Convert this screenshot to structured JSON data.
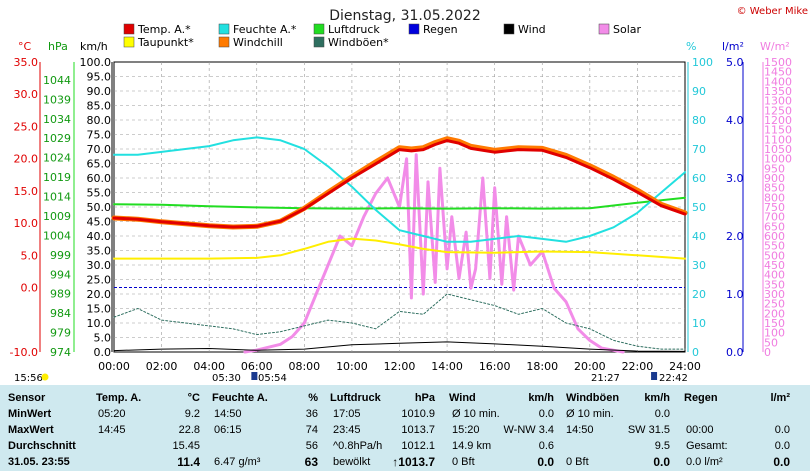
{
  "header": {
    "title": "Dienstag, 31.05.2022",
    "copyright": "© Weber Mike"
  },
  "legend": [
    {
      "label": "Temp. A.*",
      "color": "#e00000"
    },
    {
      "label": "Feuchte A.*",
      "color": "#22e0e0"
    },
    {
      "label": "Luftdruck",
      "color": "#22dd22"
    },
    {
      "label": "Regen",
      "color": "#0000dd"
    },
    {
      "label": "Wind",
      "color": "#000000"
    },
    {
      "label": "Solar",
      "color": "#f28ce8"
    },
    {
      "label": "Taupunkt*",
      "color": "#ffff00"
    },
    {
      "label": "Windchill",
      "color": "#ff7a00"
    },
    {
      "label": "Windböen*",
      "color": "#2f6f60"
    }
  ],
  "chart_data": {
    "type": "line",
    "x_ticks": [
      "00:00",
      "02:00",
      "04:00",
      "06:00",
      "08:00",
      "10:00",
      "12:00",
      "14:00",
      "16:00",
      "18:00",
      "20:00",
      "22:00",
      "24:00"
    ],
    "axes": {
      "temp": {
        "unit": "°C",
        "range": [
          -10,
          35
        ],
        "ticks": [
          "35.0",
          "30.0",
          "25.0",
          "20.0",
          "15.0",
          "10.0",
          "5.0",
          "0.0",
          "-10.0"
        ],
        "tick_values": [
          35,
          30,
          25,
          20,
          15,
          10,
          5,
          0,
          -10
        ]
      },
      "pressure": {
        "unit": "hPa",
        "range": [
          974,
          1048.6
        ],
        "ticks": [
          "1044",
          "1039",
          "1034",
          "1029",
          "1024",
          "1019",
          "1014",
          "1009",
          "1004",
          "999",
          "994",
          "989",
          "984",
          "979",
          "974"
        ]
      },
      "wind": {
        "unit": "km/h",
        "range": [
          0,
          100
        ],
        "ticks": [
          "100.0",
          "95.0",
          "90.0",
          "85.0",
          "80.0",
          "75.0",
          "70.0",
          "65.0",
          "60.0",
          "55.0",
          "50.0",
          "45.0",
          "40.0",
          "35.0",
          "30.0",
          "25.0",
          "20.0",
          "15.0",
          "10.0",
          "5.0",
          "0.0"
        ]
      },
      "humidity": {
        "unit": "%",
        "range": [
          0,
          100
        ],
        "ticks": [
          "100",
          "90",
          "80",
          "70",
          "60",
          "50",
          "40",
          "30",
          "20",
          "10",
          "0"
        ]
      },
      "rain": {
        "unit": "l/m²",
        "range": [
          0,
          5
        ],
        "ticks": [
          "5.0",
          "4.0",
          "3.0",
          "2.0",
          "1.0",
          "0.0"
        ]
      },
      "solar": {
        "unit": "W/m²",
        "range": [
          0,
          1500
        ],
        "ticks": [
          "1500",
          "1450",
          "1400",
          "1350",
          "1300",
          "1250",
          "1200",
          "1150",
          "1100",
          "1050",
          "1000",
          "950",
          "900",
          "850",
          "800",
          "750",
          "700",
          "650",
          "600",
          "550",
          "500",
          "450",
          "400",
          "350",
          "300",
          "250",
          "200",
          "150",
          "100",
          "50",
          "0"
        ]
      }
    },
    "series": [
      {
        "name": "Temp. A.*",
        "axis": "temp",
        "x": [
          0,
          1,
          2,
          3,
          4,
          5,
          6,
          7,
          8,
          9,
          10,
          11,
          12,
          12.5,
          13,
          13.5,
          14,
          14.5,
          15,
          16,
          17,
          18,
          19,
          20,
          21,
          22,
          23,
          24
        ],
        "y": [
          10.8,
          10.6,
          10.2,
          9.9,
          9.6,
          9.4,
          9.5,
          10.3,
          12.2,
          14.6,
          17.0,
          19.2,
          21.4,
          21.2,
          21.4,
          22.2,
          22.8,
          22.4,
          21.6,
          21.0,
          21.4,
          21.3,
          20.2,
          18.6,
          16.8,
          14.8,
          12.7,
          11.4
        ]
      },
      {
        "name": "Feuchte A.*",
        "axis": "humidity",
        "x": [
          0,
          1,
          2,
          3,
          4,
          5,
          6,
          7,
          8,
          9,
          10,
          11,
          12,
          13,
          14,
          15,
          16,
          17,
          18,
          19,
          20,
          21,
          22,
          23,
          24
        ],
        "y": [
          68,
          68,
          69,
          70,
          71,
          73,
          74,
          73,
          70,
          64,
          57,
          49,
          42,
          40,
          38,
          38,
          39,
          40,
          39,
          38,
          40,
          43,
          48,
          55,
          62
        ]
      },
      {
        "name": "Luftdruck",
        "axis": "pressure",
        "x": [
          0,
          2,
          4,
          6,
          8,
          10,
          12,
          14,
          16,
          18,
          20,
          22,
          24
        ],
        "y": [
          1012.0,
          1011.9,
          1011.5,
          1011.2,
          1011.0,
          1010.9,
          1011.0,
          1010.9,
          1011.0,
          1010.9,
          1011.0,
          1012.4,
          1013.7
        ]
      },
      {
        "name": "Taupunkt*",
        "axis": "temp",
        "x": [
          0,
          2,
          4,
          6,
          7,
          8,
          9,
          10,
          11,
          12,
          13,
          14,
          16,
          18,
          20,
          22,
          24
        ],
        "y": [
          4.5,
          4.5,
          4.5,
          4.6,
          5.0,
          6.0,
          7.1,
          7.6,
          7.3,
          6.7,
          6.0,
          5.5,
          5.4,
          5.6,
          5.5,
          5.0,
          4.5
        ]
      },
      {
        "name": "Solar",
        "axis": "solar",
        "x": [
          5.5,
          6,
          7,
          7.5,
          8,
          8.5,
          9,
          9.5,
          10,
          10.5,
          11,
          11.5,
          12,
          12.3,
          12.5,
          12.7,
          13,
          13.2,
          13.5,
          13.7,
          14,
          14.2,
          14.5,
          14.8,
          15,
          15.2,
          15.5,
          15.8,
          16,
          16.3,
          16.5,
          16.8,
          17,
          17.5,
          18,
          18.5,
          19,
          19.5,
          20,
          20.5,
          21.4
        ],
        "y": [
          0,
          10,
          40,
          80,
          150,
          300,
          450,
          600,
          550,
          700,
          820,
          900,
          750,
          1000,
          280,
          1020,
          300,
          880,
          360,
          950,
          430,
          700,
          380,
          620,
          330,
          430,
          900,
          380,
          850,
          350,
          700,
          320,
          600,
          450,
          520,
          330,
          260,
          120,
          60,
          20,
          0
        ]
      },
      {
        "name": "Wind",
        "axis": "wind",
        "x": [
          0,
          2,
          4,
          6,
          8,
          10,
          12,
          14,
          16,
          18,
          20,
          22,
          24
        ],
        "y": [
          0.5,
          1.0,
          1.2,
          0.6,
          1.0,
          2.5,
          3.0,
          3.5,
          2.8,
          2.0,
          1.0,
          0.3,
          0.2
        ]
      },
      {
        "name": "Windböen*",
        "axis": "wind",
        "x": [
          0,
          1,
          2,
          3,
          4,
          5,
          6,
          7,
          8,
          9,
          10,
          11,
          12,
          13,
          14,
          15,
          16,
          17,
          18,
          19,
          20,
          21,
          22,
          23,
          24
        ],
        "y": [
          12,
          15,
          11,
          10,
          9,
          8,
          6,
          7,
          9,
          11,
          10,
          8,
          14,
          13,
          20,
          18,
          16,
          13,
          15,
          10,
          8,
          4,
          2,
          1,
          1
        ]
      },
      {
        "name": "Windchill",
        "axis": "temp",
        "x": [
          0,
          1,
          2,
          3,
          4,
          5,
          6,
          7,
          8,
          9,
          10,
          11,
          12,
          12.5,
          13,
          13.5,
          14,
          14.5,
          15,
          16,
          17,
          18,
          19,
          20,
          21,
          22,
          23,
          24
        ],
        "y": [
          10.8,
          10.6,
          10.2,
          9.9,
          9.6,
          9.4,
          9.5,
          10.3,
          12.3,
          14.8,
          17.2,
          19.5,
          21.7,
          21.5,
          21.7,
          22.5,
          23.1,
          22.7,
          21.9,
          21.3,
          21.7,
          21.6,
          20.5,
          18.9,
          17.1,
          15.1,
          12.9,
          11.6
        ]
      }
    ],
    "annotations": {
      "left_time": "15:56",
      "sunrise": "05:30",
      "sunrise_civil": "05:54",
      "sunset": "21:27",
      "sunset_civil": "22:42"
    }
  },
  "table": {
    "headers": {
      "sensor": "Sensor",
      "temp": "Temp. A.",
      "temp_unit": "°C",
      "hum": "Feuchte A.",
      "hum_unit": "%",
      "press": "Luftdruck",
      "press_unit": "hPa",
      "wind": "Wind",
      "wind_unit": "km/h",
      "gust": "Windböen",
      "gust_unit": "km/h",
      "rain": "Regen",
      "rain_unit": "l/m²"
    },
    "rows": [
      {
        "label": "MinWert",
        "temp_time": "05:20",
        "temp": "9.2",
        "hum_time": "14:50",
        "hum": "36",
        "press_time": "17:05",
        "press": "1010.9",
        "wind_a": "Ø 10 min.",
        "wind_b": "0.0",
        "gust_a": "Ø 10 min.",
        "gust_b": "0.0",
        "rain_a": "",
        "rain_b": ""
      },
      {
        "label": "MaxWert",
        "temp_time": "14:45",
        "temp": "22.8",
        "hum_time": "06:15",
        "hum": "74",
        "press_time": "23:45",
        "press": "1013.7",
        "wind_a": "15:20",
        "wind_b": "W-NW 3.4",
        "gust_a": "14:50",
        "gust_b": "SW 31.5",
        "rain_a": "00:00",
        "rain_b": "0.0"
      },
      {
        "label": "Durchschnitt",
        "temp_time": "",
        "temp": "15.45",
        "hum_time": "",
        "hum": "56",
        "press_time": "^0.8hPa/h",
        "press": "1012.1",
        "wind_a": "14.9 km",
        "wind_b": "0.6",
        "gust_a": "",
        "gust_b": "9.5",
        "rain_a": "Gesamt:",
        "rain_b": "0.0"
      },
      {
        "label": "31.05. 23:55",
        "temp_time": "",
        "temp": "11.4",
        "hum_time": "6.47 g/m³",
        "hum": "63",
        "press_time": "bewölkt",
        "press": "↑1013.7",
        "wind_a": "0 Bft",
        "wind_b": "0.0",
        "gust_a": "0 Bft",
        "gust_b": "0.0",
        "rain_a": "0.0 l/m²",
        "rain_b": "0.0"
      }
    ]
  }
}
